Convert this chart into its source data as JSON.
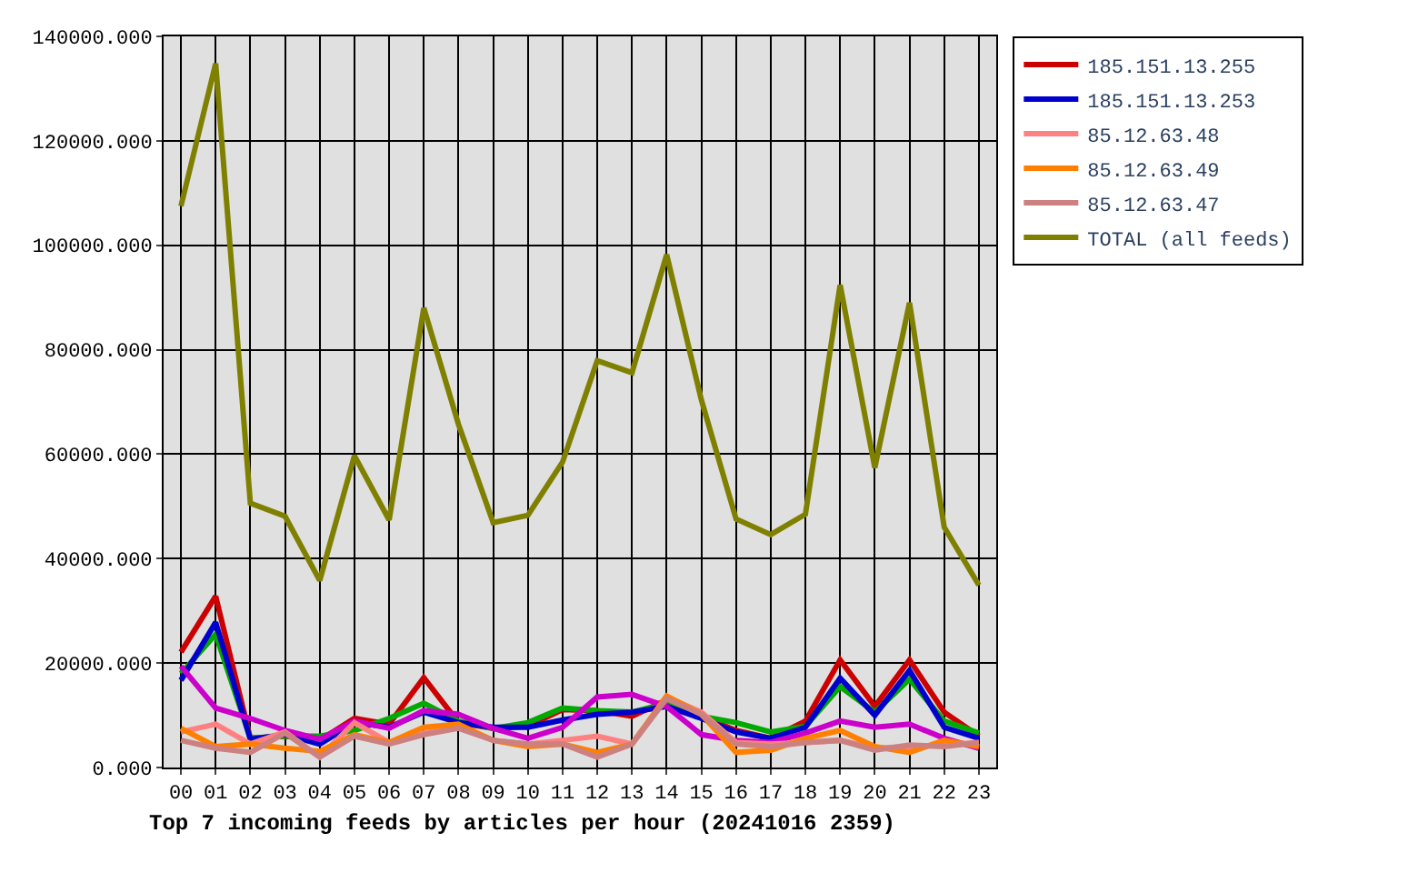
{
  "chart_data": {
    "type": "line",
    "title": "Top 7 incoming feeds by articles per hour (20241016 2359)",
    "categories": [
      "00",
      "01",
      "02",
      "03",
      "04",
      "05",
      "06",
      "07",
      "08",
      "09",
      "10",
      "11",
      "12",
      "13",
      "14",
      "15",
      "16",
      "17",
      "18",
      "19",
      "20",
      "21",
      "22",
      "23"
    ],
    "ylim": [
      0,
      140000
    ],
    "yticks": [
      {
        "value": 0,
        "label": "0.000"
      },
      {
        "value": 20000,
        "label": "20000.000"
      },
      {
        "value": 40000,
        "label": "40000.000"
      },
      {
        "value": 60000,
        "label": "60000.000"
      },
      {
        "value": 80000,
        "label": "80000.000"
      },
      {
        "value": 100000,
        "label": "100000.000"
      },
      {
        "value": 120000,
        "label": "120000.000"
      },
      {
        "value": 140000,
        "label": "140000.000"
      }
    ],
    "grid": true,
    "legend": "top right",
    "line_style": "solid",
    "series": [
      {
        "name": "185.151.13.255",
        "color": "#cc0000",
        "values": [
          22100,
          32800,
          5600,
          6000,
          5200,
          9400,
          8300,
          17200,
          8600,
          7500,
          7900,
          11100,
          10900,
          9800,
          12900,
          9800,
          7100,
          5600,
          8900,
          20600,
          11700,
          20600,
          10600,
          6000
        ]
      },
      {
        "color": "#00aa00",
        "values": [
          18000,
          25500,
          5600,
          6000,
          6000,
          7100,
          9400,
          12300,
          8900,
          7500,
          8600,
          11400,
          10900,
          10600,
          12300,
          9800,
          8600,
          6800,
          7900,
          15500,
          10600,
          16900,
          8900,
          6600
        ]
      },
      {
        "name": "185.151.13.253",
        "color": "#0000cc",
        "values": [
          16700,
          27800,
          5400,
          6300,
          4500,
          8600,
          7700,
          10600,
          8600,
          7700,
          7700,
          9100,
          10200,
          10600,
          11700,
          9400,
          6800,
          5600,
          7700,
          17100,
          10000,
          18600,
          7700,
          5600
        ]
      },
      {
        "color": "#cc00cc",
        "values": [
          19400,
          11400,
          9400,
          7100,
          5400,
          8900,
          7500,
          10900,
          10200,
          7500,
          5600,
          7700,
          13500,
          14000,
          11700,
          6300,
          5200,
          4800,
          6600,
          8900,
          7700,
          8300,
          5600,
          3700
        ]
      },
      {
        "name": "85.12.63.48",
        "color": "#ff8080",
        "values": [
          6800,
          8300,
          4500,
          6800,
          2000,
          8600,
          4800,
          6600,
          7900,
          5200,
          4500,
          5200,
          6000,
          4500,
          13500,
          10600,
          4800,
          4500,
          4800,
          5200,
          3700,
          4000,
          4300,
          4800
        ]
      },
      {
        "name": "85.12.63.49",
        "color": "#ff8000",
        "values": [
          7500,
          4000,
          4500,
          3700,
          3100,
          6300,
          4800,
          7700,
          8300,
          5200,
          4000,
          4500,
          2900,
          4500,
          13700,
          10200,
          2900,
          3300,
          5600,
          7100,
          4000,
          2900,
          5200,
          4000
        ]
      },
      {
        "name": "85.12.63.47",
        "color": "#cc8080",
        "values": [
          5200,
          3700,
          2900,
          6600,
          2000,
          6000,
          4500,
          6300,
          7500,
          5200,
          4500,
          4500,
          2000,
          4500,
          13200,
          10200,
          4500,
          4000,
          4800,
          5200,
          3300,
          4300,
          4000,
          4800
        ]
      },
      {
        "name": "TOTAL (all feeds)",
        "color": "#808000",
        "values": [
          107500,
          134800,
          50600,
          48100,
          35800,
          59700,
          47400,
          88000,
          65700,
          46900,
          48300,
          58500,
          77900,
          75600,
          98200,
          70400,
          47600,
          44600,
          48500,
          92400,
          57400,
          89000,
          46000,
          34900
        ]
      }
    ]
  }
}
